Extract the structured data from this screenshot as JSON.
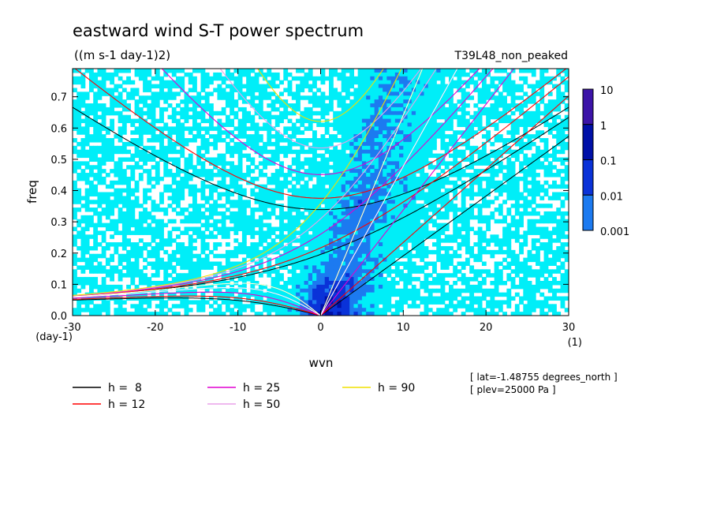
{
  "chart_data": {
    "type": "heatmap",
    "title": "eastward wind S-T power spectrum",
    "subtitle": "((m s-1 day-1)2)",
    "run_label": "T39L48_non_peaked",
    "xlabel": "wvn",
    "ylabel": "freq",
    "x_unit": "(1)",
    "y_unit": "(day-1)",
    "xlim": [
      -30,
      30
    ],
    "ylim": [
      0,
      0.79
    ],
    "x_ticks": [
      -30,
      -20,
      -10,
      0,
      10,
      20,
      30
    ],
    "y_ticks": [
      0.0,
      0.1,
      0.2,
      0.3,
      0.4,
      0.5,
      0.6,
      0.7
    ],
    "x_tick_labels": [
      "-30",
      "-20",
      "-10",
      "0",
      "10",
      "20",
      "30"
    ],
    "y_tick_labels": [
      "0.0",
      "0.1",
      "0.2",
      "0.3",
      "0.4",
      "0.5",
      "0.6",
      "0.7"
    ],
    "colorbar": {
      "levels": [
        0.001,
        0.01,
        0.1,
        1,
        10
      ],
      "labels": [
        "0.001",
        "0.01",
        "0.1",
        "1",
        "10"
      ],
      "colors": [
        "#00eef8",
        "#1c7af0",
        "#0a32d8",
        "#0010a8",
        "#3c14a8"
      ],
      "below_min_color": "#ffffff"
    },
    "dispersion_curves": [
      {
        "name": "h =  8",
        "h": 8,
        "color": "#000000"
      },
      {
        "name": "h = 12",
        "h": 12,
        "color": "#ff0000"
      },
      {
        "name": "h = 25",
        "h": 25,
        "color": "#e000d0"
      },
      {
        "name": "h = 50",
        "h": 50,
        "color": "#e8a0e8"
      },
      {
        "name": "h = 90",
        "h": 90,
        "color": "#f0e000"
      }
    ],
    "annotations": [
      "[ lat=-1.48755 degrees_north ]",
      "[ plev=25000 Pa ]"
    ]
  }
}
